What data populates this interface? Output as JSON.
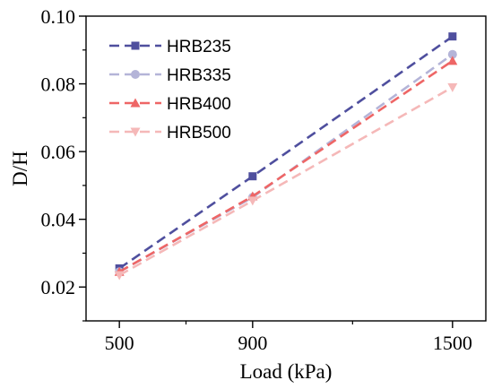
{
  "chart_data": {
    "type": "line",
    "xlabel": "Load (kPa)",
    "ylabel": "D/H",
    "xlim": [
      400,
      1600
    ],
    "ylim": [
      0.01,
      0.1
    ],
    "x_ticks": [
      500,
      900,
      1500
    ],
    "y_ticks": [
      0.02,
      0.04,
      0.06,
      0.08,
      0.1
    ],
    "x_tick_labels": [
      "500",
      "900",
      "1500"
    ],
    "y_tick_labels": [
      "0.02",
      "0.04",
      "0.06",
      "0.08",
      "0.10"
    ],
    "x": [
      500,
      900,
      1500
    ],
    "legend_position": "top-left",
    "series": [
      {
        "name": "HRB235",
        "values": [
          0.0255,
          0.0527,
          0.094
        ],
        "color": "#4f4f9e",
        "marker": "square"
      },
      {
        "name": "HRB335",
        "values": [
          0.0245,
          0.0465,
          0.0887
        ],
        "color": "#b4b4d8",
        "marker": "circle"
      },
      {
        "name": "HRB400",
        "values": [
          0.0245,
          0.0468,
          0.0868
        ],
        "color": "#ee6666",
        "marker": "triangle-up"
      },
      {
        "name": "HRB500",
        "values": [
          0.0235,
          0.0455,
          0.079
        ],
        "color": "#f5b8b8",
        "marker": "triangle-down"
      }
    ]
  }
}
